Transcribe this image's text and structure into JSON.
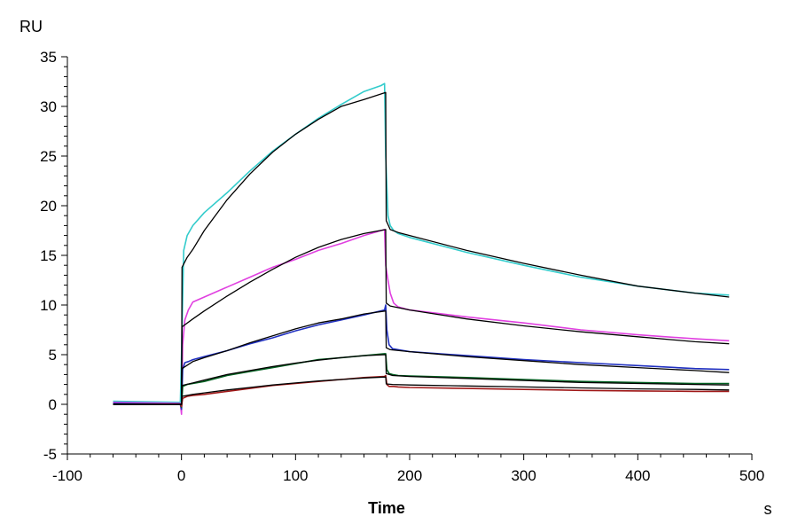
{
  "chart_data": {
    "type": "line",
    "xlabel": "Time",
    "xunit": "s",
    "ylabel": "RU",
    "xlim": [
      -100,
      500
    ],
    "ylim": [
      -5,
      35
    ],
    "xticks": [
      -100,
      0,
      100,
      200,
      300,
      400,
      500
    ],
    "yticks": [
      -5,
      0,
      5,
      10,
      15,
      20,
      25,
      30,
      35
    ],
    "grid": false,
    "legend": "none",
    "series": [
      {
        "color": "#33cccc",
        "role": "measured",
        "x": [
          -60,
          -1,
          0,
          2,
          5,
          10,
          20,
          40,
          60,
          80,
          100,
          120,
          140,
          160,
          175,
          178,
          179,
          181,
          183,
          186,
          190,
          200,
          250,
          300,
          350,
          400,
          450,
          480
        ],
        "y": [
          0.3,
          0.2,
          5,
          15.5,
          17,
          18,
          19.3,
          21.3,
          23.5,
          25.5,
          27.2,
          28.8,
          30.2,
          31.5,
          32.1,
          32.3,
          25,
          19,
          18,
          17.5,
          17.2,
          16.8,
          15.3,
          14,
          12.8,
          11.9,
          11.2,
          11.0
        ]
      },
      {
        "color": "#000000",
        "role": "fit",
        "x": [
          -60,
          0,
          0.5,
          5,
          10,
          20,
          40,
          60,
          80,
          100,
          120,
          140,
          160,
          179,
          179.5,
          183,
          190,
          200,
          250,
          300,
          350,
          400,
          450,
          480
        ],
        "y": [
          0,
          0,
          13.8,
          14.8,
          15.6,
          17.5,
          20.6,
          23.2,
          25.4,
          27.2,
          28.7,
          30,
          30.7,
          31.4,
          18.5,
          17.6,
          17.3,
          17.0,
          15.5,
          14.2,
          13.0,
          11.9,
          11.2,
          10.8
        ]
      },
      {
        "color": "#e040e0",
        "role": "measured",
        "x": [
          -60,
          -1,
          0,
          1,
          3,
          6,
          10,
          20,
          40,
          60,
          80,
          100,
          120,
          140,
          160,
          178,
          179,
          181,
          183,
          186,
          190,
          200,
          250,
          300,
          350,
          400,
          450,
          480
        ],
        "y": [
          0.2,
          0.1,
          -1,
          6,
          8.5,
          9.5,
          10.3,
          10.8,
          11.8,
          12.8,
          13.8,
          14.6,
          15.5,
          16.2,
          17,
          17.6,
          14,
          12.5,
          11.2,
          10.2,
          9.8,
          9.5,
          8.8,
          8.2,
          7.5,
          7,
          6.6,
          6.4
        ]
      },
      {
        "color": "#000000",
        "role": "fit",
        "x": [
          -60,
          0,
          0.5,
          10,
          20,
          40,
          60,
          80,
          100,
          120,
          140,
          160,
          179,
          179.5,
          183,
          200,
          250,
          300,
          350,
          400,
          450,
          480
        ],
        "y": [
          0,
          0,
          7.8,
          8.6,
          9.4,
          10.9,
          12.3,
          13.6,
          14.8,
          15.8,
          16.6,
          17.2,
          17.6,
          10.2,
          9.9,
          9.5,
          8.6,
          7.9,
          7.3,
          6.8,
          6.3,
          6.1
        ]
      },
      {
        "color": "#2030c0",
        "role": "measured",
        "x": [
          -60,
          -1,
          0,
          1,
          3,
          6,
          10,
          20,
          40,
          60,
          80,
          100,
          120,
          140,
          160,
          178,
          179,
          180,
          182,
          185,
          190,
          200,
          250,
          300,
          350,
          400,
          450,
          480
        ],
        "y": [
          0.1,
          0,
          -0.5,
          3.5,
          4.2,
          4.3,
          4.5,
          4.8,
          5.4,
          6.1,
          6.7,
          7.4,
          8,
          8.5,
          9,
          9.5,
          10,
          7.5,
          6,
          5.6,
          5.5,
          5.3,
          4.9,
          4.5,
          4.2,
          3.9,
          3.6,
          3.5
        ]
      },
      {
        "color": "#000000",
        "role": "fit",
        "x": [
          -60,
          0,
          0.5,
          10,
          20,
          40,
          60,
          80,
          100,
          120,
          140,
          160,
          179,
          179.5,
          183,
          200,
          250,
          300,
          350,
          400,
          450,
          480
        ],
        "y": [
          0,
          0,
          3.6,
          4.3,
          4.7,
          5.4,
          6.2,
          6.9,
          7.6,
          8.2,
          8.6,
          9.1,
          9.4,
          5.7,
          5.5,
          5.3,
          4.8,
          4.4,
          4.0,
          3.7,
          3.4,
          3.2
        ]
      },
      {
        "color": "#006020",
        "role": "measured",
        "x": [
          -60,
          -1,
          0,
          1,
          5,
          10,
          20,
          40,
          60,
          80,
          100,
          120,
          140,
          160,
          178,
          179,
          180,
          182,
          185,
          190,
          200,
          250,
          300,
          350,
          400,
          450,
          480
        ],
        "y": [
          0,
          0,
          -0.3,
          1.8,
          2,
          2.1,
          2.3,
          2.9,
          3.3,
          3.7,
          4.1,
          4.5,
          4.7,
          4.9,
          5.1,
          5.1,
          3.5,
          3.1,
          3,
          2.9,
          2.85,
          2.7,
          2.5,
          2.3,
          2.2,
          2.1,
          2.1
        ]
      },
      {
        "color": "#000000",
        "role": "fit",
        "x": [
          -60,
          0,
          0.5,
          10,
          20,
          40,
          60,
          80,
          100,
          120,
          140,
          160,
          179,
          179.5,
          185,
          200,
          250,
          300,
          350,
          400,
          450,
          480
        ],
        "y": [
          0,
          0,
          1.9,
          2.15,
          2.45,
          3.0,
          3.4,
          3.8,
          4.15,
          4.45,
          4.7,
          4.9,
          5.0,
          3.1,
          2.9,
          2.8,
          2.6,
          2.4,
          2.2,
          2.1,
          2.0,
          1.95
        ]
      },
      {
        "color": "#a01818",
        "role": "measured",
        "x": [
          -60,
          -1,
          0,
          1,
          5,
          10,
          20,
          40,
          60,
          80,
          100,
          120,
          140,
          160,
          178,
          179,
          180,
          182,
          186,
          190,
          200,
          250,
          300,
          350,
          400,
          450,
          480
        ],
        "y": [
          0,
          0,
          -0.2,
          0.6,
          0.8,
          0.9,
          1,
          1.3,
          1.6,
          1.9,
          2.1,
          2.3,
          2.5,
          2.7,
          2.8,
          2.9,
          2,
          1.8,
          1.8,
          1.75,
          1.7,
          1.6,
          1.5,
          1.4,
          1.35,
          1.3,
          1.3
        ]
      },
      {
        "color": "#000000",
        "role": "fit",
        "x": [
          -60,
          0,
          0.5,
          10,
          20,
          40,
          60,
          80,
          100,
          120,
          140,
          160,
          179,
          179.5,
          185,
          200,
          250,
          300,
          350,
          400,
          450,
          480
        ],
        "y": [
          0,
          0,
          0.8,
          1.0,
          1.15,
          1.45,
          1.7,
          1.95,
          2.15,
          2.35,
          2.5,
          2.65,
          2.75,
          2.05,
          2.0,
          1.95,
          1.85,
          1.75,
          1.65,
          1.55,
          1.5,
          1.45
        ]
      }
    ]
  }
}
